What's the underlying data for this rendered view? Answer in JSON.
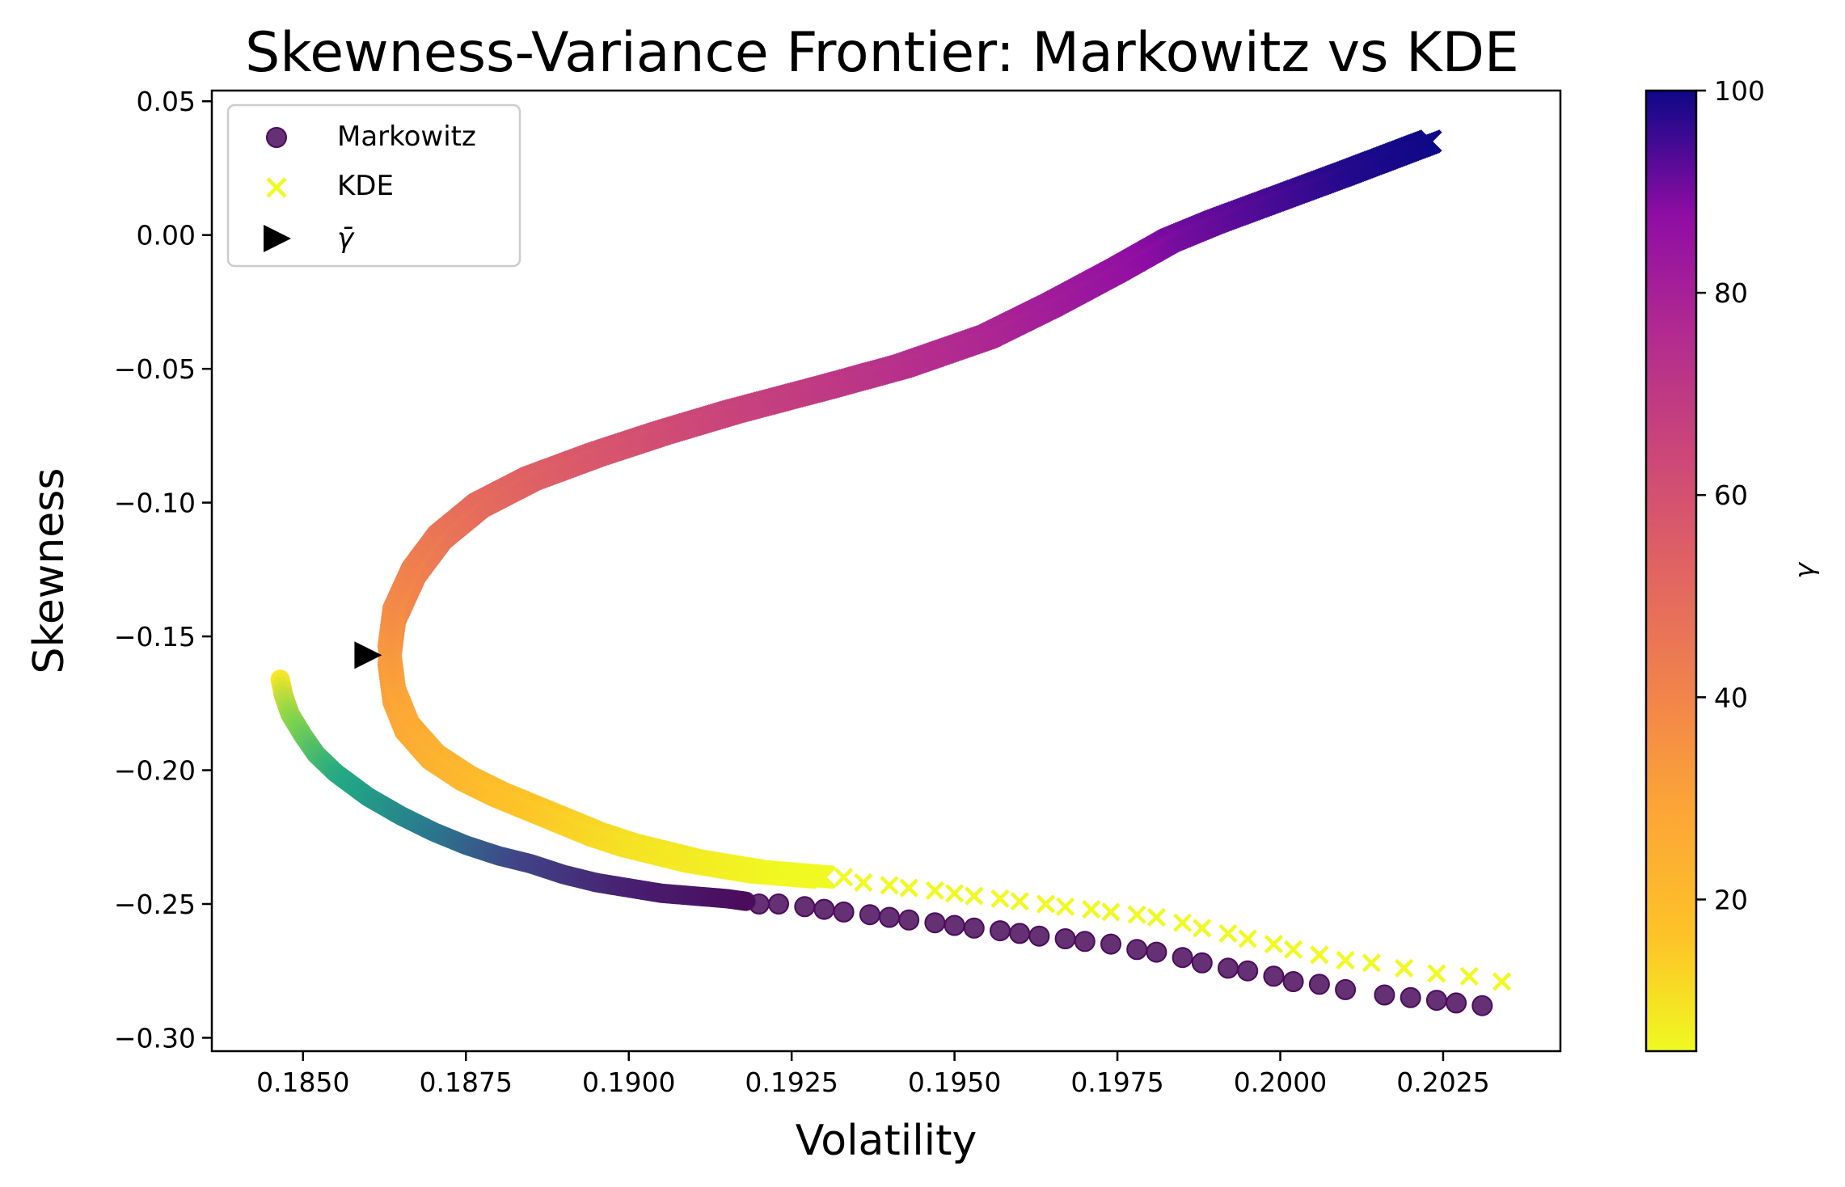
{
  "chart_data": {
    "type": "scatter",
    "title": "Skewness-Variance Frontier: Markowitz vs KDE",
    "xlabel": "Volatility",
    "ylabel": "Skewness",
    "xlim": [
      0.1836,
      0.2043
    ],
    "ylim": [
      -0.305,
      0.054
    ],
    "xticks": [
      0.185,
      0.1875,
      0.19,
      0.1925,
      0.195,
      0.1975,
      0.2,
      0.2025
    ],
    "xtick_labels": [
      "0.1850",
      "0.1875",
      "0.1900",
      "0.1925",
      "0.1950",
      "0.1975",
      "0.2000",
      "0.2025"
    ],
    "yticks": [
      0.05,
      0.0,
      -0.05,
      -0.1,
      -0.15,
      -0.2,
      -0.25,
      -0.3
    ],
    "ytick_labels": [
      "0.05",
      "0.00",
      "−0.05",
      "−0.10",
      "−0.15",
      "−0.20",
      "−0.25",
      "−0.30"
    ],
    "grid": false,
    "legend_position": "top-left",
    "legend": [
      {
        "label": "Markowitz",
        "marker": "circle",
        "color": "#4b0c5c"
      },
      {
        "label": "KDE",
        "marker": "x",
        "color": "#f0f921"
      },
      {
        "label": "γ̄",
        "marker": "triangle-right",
        "color": "#000000"
      }
    ],
    "colorbar": {
      "label": "γ",
      "range": [
        5,
        100
      ],
      "ticks": [
        20,
        40,
        60,
        80,
        100
      ],
      "tick_labels": [
        "20",
        "40",
        "60",
        "80",
        "100"
      ],
      "colormap": "plasma_r"
    },
    "gamma_bar": {
      "x": 0.186,
      "y": -0.157
    },
    "markowitz_curve": {
      "description": "dense viridis-colored path of circles",
      "x": [
        0.18465,
        0.1847,
        0.1848,
        0.185,
        0.1852,
        0.1855,
        0.186,
        0.1865,
        0.187,
        0.1875,
        0.188,
        0.1885,
        0.189,
        0.1895,
        0.19,
        0.1905,
        0.191,
        0.1915,
        0.1918
      ],
      "y": [
        -0.166,
        -0.172,
        -0.179,
        -0.187,
        -0.194,
        -0.201,
        -0.21,
        -0.217,
        -0.223,
        -0.228,
        -0.232,
        -0.235,
        -0.239,
        -0.242,
        -0.244,
        -0.246,
        -0.247,
        -0.248,
        -0.249
      ]
    },
    "markowitz_points": {
      "x": [
        0.192,
        0.1923,
        0.1927,
        0.193,
        0.1933,
        0.1937,
        0.194,
        0.1943,
        0.1947,
        0.195,
        0.1953,
        0.1957,
        0.196,
        0.1963,
        0.1967,
        0.197,
        0.1974,
        0.1978,
        0.1981,
        0.1985,
        0.1988,
        0.1992,
        0.1995,
        0.1999,
        0.2002,
        0.2006,
        0.201,
        0.2016,
        0.202,
        0.2024,
        0.2027,
        0.2031
      ],
      "y": [
        -0.25,
        -0.25,
        -0.251,
        -0.252,
        -0.253,
        -0.254,
        -0.255,
        -0.256,
        -0.257,
        -0.258,
        -0.259,
        -0.26,
        -0.261,
        -0.262,
        -0.263,
        -0.264,
        -0.265,
        -0.267,
        -0.268,
        -0.27,
        -0.272,
        -0.274,
        -0.275,
        -0.277,
        -0.279,
        -0.28,
        -0.282,
        -0.284,
        -0.285,
        -0.286,
        -0.287,
        -0.288
      ]
    },
    "kde_curve": {
      "description": "dense plasma-colored path of x markers colored by gamma",
      "x": [
        0.2023,
        0.201,
        0.2,
        0.199,
        0.1983,
        0.1975,
        0.1965,
        0.1955,
        0.1942,
        0.193,
        0.1916,
        0.1905,
        0.1895,
        0.1885,
        0.1877,
        0.1871,
        0.1867,
        0.1864,
        0.18632,
        0.1864,
        0.1866,
        0.187,
        0.1875,
        0.188,
        0.1885,
        0.189,
        0.1895,
        0.19,
        0.1905,
        0.191,
        0.1915,
        0.192,
        0.1925,
        0.193
      ],
      "y": [
        0.035,
        0.023,
        0.014,
        0.005,
        -0.002,
        -0.013,
        -0.026,
        -0.038,
        -0.049,
        -0.057,
        -0.066,
        -0.074,
        -0.082,
        -0.091,
        -0.101,
        -0.113,
        -0.126,
        -0.142,
        -0.157,
        -0.172,
        -0.184,
        -0.195,
        -0.203,
        -0.209,
        -0.214,
        -0.219,
        -0.224,
        -0.228,
        -0.231,
        -0.234,
        -0.236,
        -0.238,
        -0.239,
        -0.24
      ],
      "gamma": [
        100,
        98,
        95,
        92,
        90,
        86,
        82,
        78,
        74,
        70,
        66,
        62,
        58,
        54,
        50,
        46,
        42,
        38,
        34,
        30,
        27,
        24,
        21,
        18,
        16,
        14,
        12,
        10,
        9,
        8,
        7,
        6,
        5,
        5
      ]
    },
    "kde_points": {
      "x": [
        0.1933,
        0.1936,
        0.194,
        0.1943,
        0.1947,
        0.195,
        0.1953,
        0.1957,
        0.196,
        0.1964,
        0.1967,
        0.1971,
        0.1974,
        0.1978,
        0.1981,
        0.1985,
        0.1988,
        0.1992,
        0.1995,
        0.1999,
        0.2002,
        0.2006,
        0.201,
        0.2014,
        0.2019,
        0.2024,
        0.2029,
        0.2034
      ],
      "y": [
        -0.24,
        -0.242,
        -0.243,
        -0.244,
        -0.245,
        -0.246,
        -0.247,
        -0.248,
        -0.249,
        -0.25,
        -0.251,
        -0.252,
        -0.253,
        -0.254,
        -0.255,
        -0.257,
        -0.259,
        -0.261,
        -0.263,
        -0.265,
        -0.267,
        -0.269,
        -0.271,
        -0.272,
        -0.274,
        -0.276,
        -0.277,
        -0.279
      ]
    }
  }
}
